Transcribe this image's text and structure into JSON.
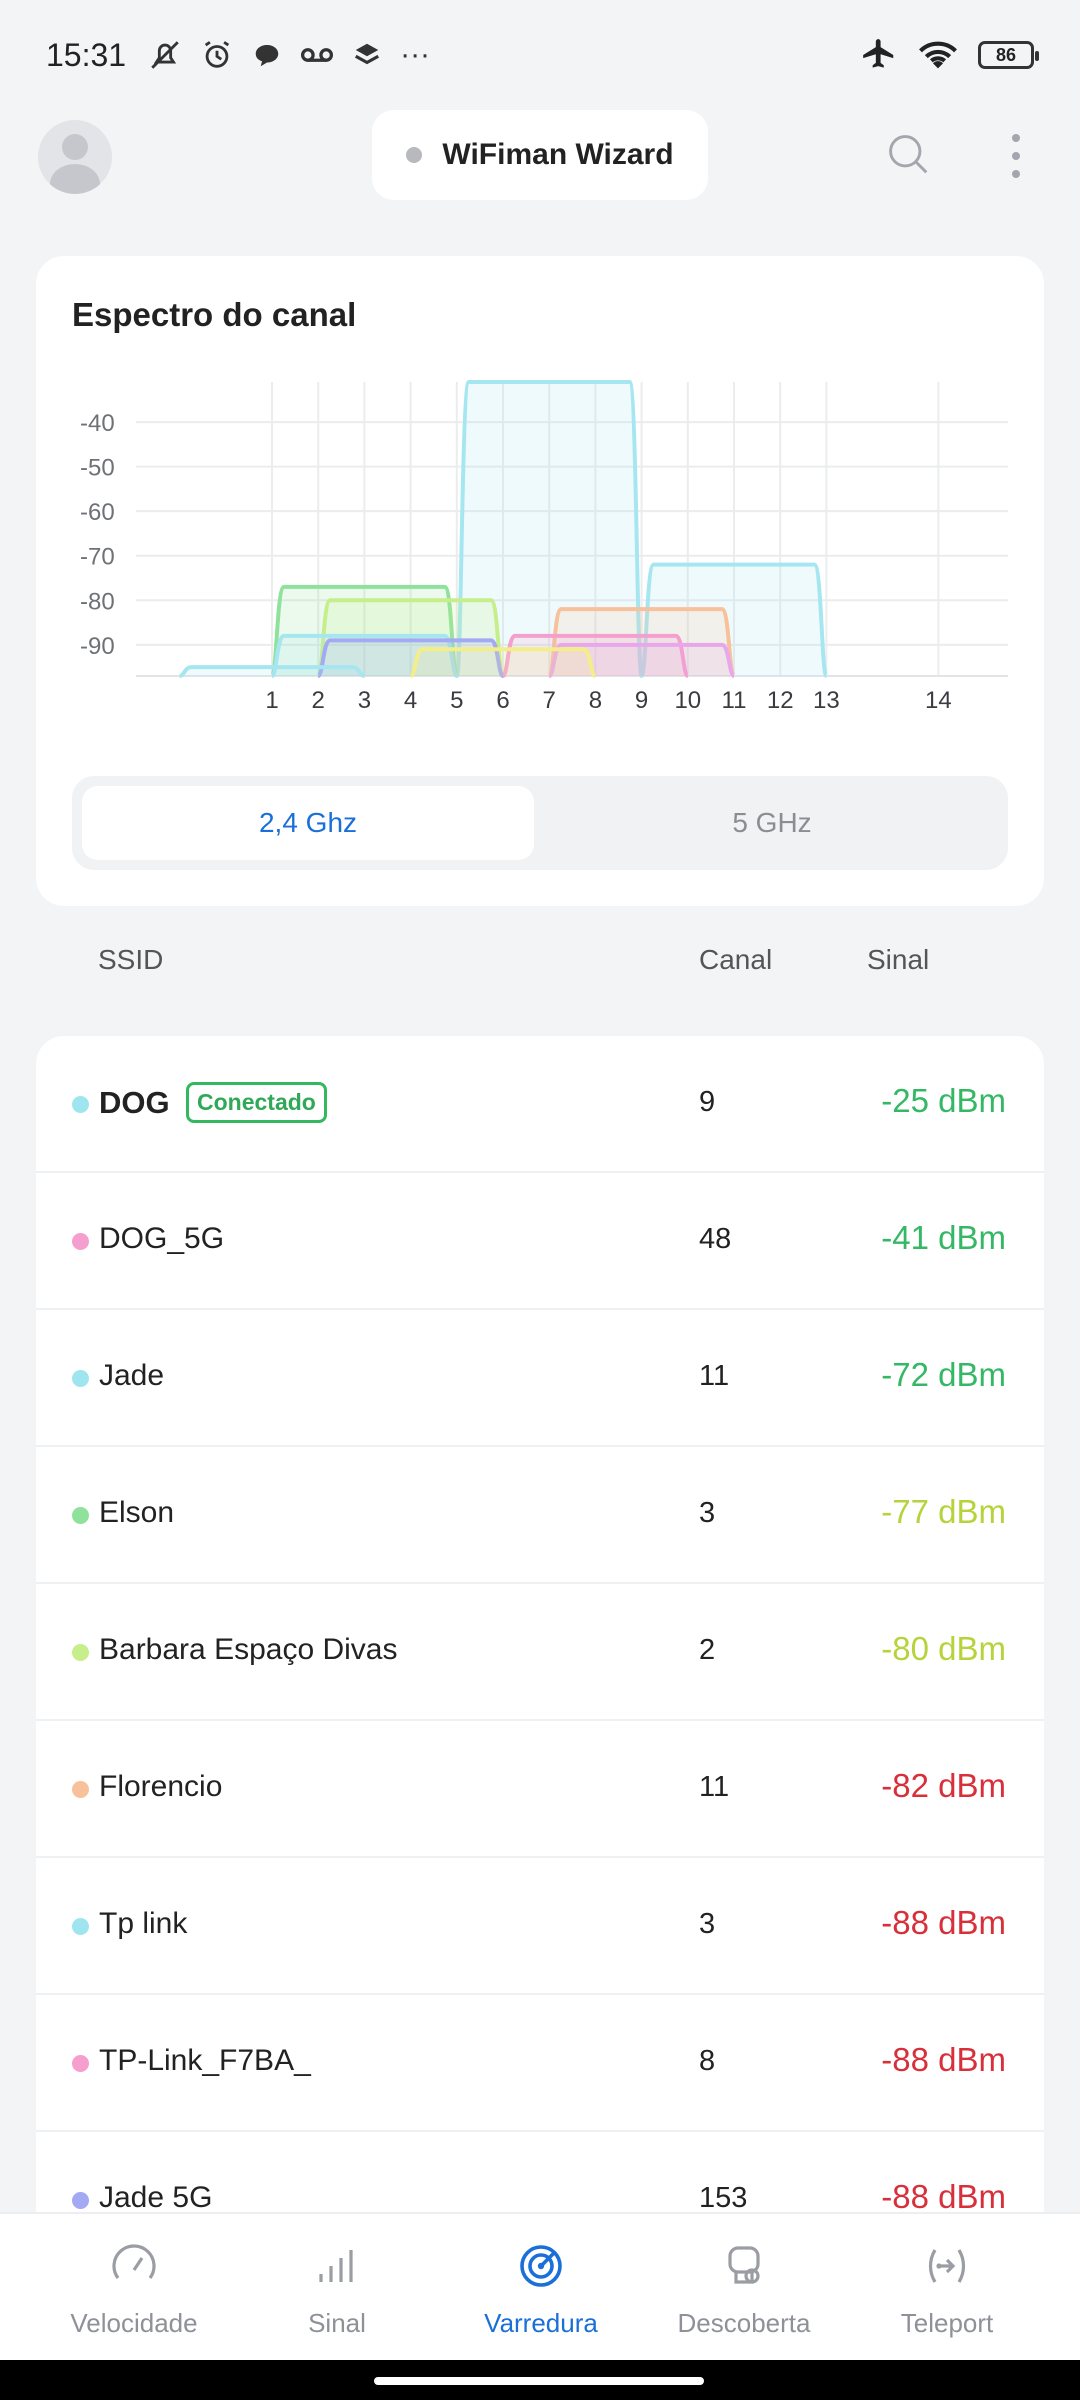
{
  "status_bar": {
    "time": "15:31",
    "battery": "86",
    "icons": [
      "bell-muted-icon",
      "alarm-icon",
      "chat-icon",
      "voicemail-icon",
      "stack-icon",
      "more-dots-icon"
    ],
    "right_icons": [
      "airplane-icon",
      "wifi-icon",
      "battery-icon"
    ]
  },
  "header": {
    "wizard_label": "WiFiman Wizard"
  },
  "spectrum": {
    "title": "Espectro do canal",
    "bands": {
      "active": "2,4 Ghz",
      "inactive": "5 GHz"
    }
  },
  "chart_data": {
    "type": "area",
    "title": "Espectro do canal",
    "x_ticks": [
      "1",
      "2",
      "3",
      "4",
      "5",
      "6",
      "7",
      "8",
      "9",
      "10",
      "11",
      "12",
      "13",
      "14"
    ],
    "y_ticks": [
      "-40",
      "-50",
      "-60",
      "-70",
      "-80",
      "-90"
    ],
    "xlim": [
      -1,
      15
    ],
    "ylim": [
      -97,
      -31
    ],
    "grid": true,
    "series": [
      {
        "channel_start": 5,
        "channel_end": 9,
        "peak_dbm": -31,
        "color": "#a6e6f0"
      },
      {
        "channel_start": 1,
        "channel_end": 5,
        "peak_dbm": -77,
        "color": "#8fe29b"
      },
      {
        "channel_start": 2,
        "channel_end": 6,
        "peak_dbm": -80,
        "color": "#c6ee8b"
      },
      {
        "channel_start": 9,
        "channel_end": 13,
        "peak_dbm": -72,
        "color": "#a6e6f0"
      },
      {
        "channel_start": 7,
        "channel_end": 11,
        "peak_dbm": -82,
        "color": "#f7c19b"
      },
      {
        "channel_start": 1,
        "channel_end": 5,
        "peak_dbm": -88,
        "color": "#a6e6f0"
      },
      {
        "channel_start": 6,
        "channel_end": 10,
        "peak_dbm": -88,
        "color": "#f59fcf"
      },
      {
        "channel_start": 2,
        "channel_end": 6,
        "peak_dbm": -89,
        "color": "#a3a9f2"
      },
      {
        "channel_start": 7,
        "channel_end": 11,
        "peak_dbm": -90,
        "color": "#e7a7ea"
      },
      {
        "channel_start": 4,
        "channel_end": 8,
        "peak_dbm": -91,
        "color": "#f3ee8a"
      },
      {
        "channel_start": -1,
        "channel_end": 3,
        "peak_dbm": -95,
        "color": "#a6e6f0"
      }
    ]
  },
  "table": {
    "col_ssid": "SSID",
    "col_channel": "Canal",
    "col_signal": "Sinal"
  },
  "networks": [
    {
      "ssid": "DOG",
      "badge": "Conectado",
      "channel": "9",
      "signal": "-25 dBm",
      "dot": "#9ee5f0",
      "signal_color": "#35b865"
    },
    {
      "ssid": "DOG_5G",
      "channel": "48",
      "signal": "-41 dBm",
      "dot": "#f59fcf",
      "signal_color": "#35b865"
    },
    {
      "ssid": "Jade",
      "channel": "11",
      "signal": "-72 dBm",
      "dot": "#9ee5f0",
      "signal_color": "#35b865"
    },
    {
      "ssid": "Elson",
      "channel": "3",
      "signal": "-77 dBm",
      "dot": "#8fe29b",
      "signal_color": "#b6d33c"
    },
    {
      "ssid": "Barbara Espaço Divas",
      "channel": "2",
      "signal": "-80 dBm",
      "dot": "#c6ee8b",
      "signal_color": "#b6d33c"
    },
    {
      "ssid": "Florencio",
      "channel": "11",
      "signal": "-82 dBm",
      "dot": "#f7c19b",
      "signal_color": "#d8303b"
    },
    {
      "ssid": "Tp link",
      "channel": "3",
      "signal": "-88 dBm",
      "dot": "#9ee5f0",
      "signal_color": "#d8303b"
    },
    {
      "ssid": "TP-Link_F7BA_",
      "channel": "8",
      "signal": "-88 dBm",
      "dot": "#f59fcf",
      "signal_color": "#d8303b"
    },
    {
      "ssid": "Jade 5G",
      "channel": "153",
      "signal": "-88 dBm",
      "dot": "#a3a9f2",
      "signal_color": "#d8303b"
    }
  ],
  "nav": [
    {
      "label": "Velocidade",
      "icon": "speedometer-icon"
    },
    {
      "label": "Sinal",
      "icon": "signal-bars-icon"
    },
    {
      "label": "Varredura",
      "icon": "radar-icon",
      "active": true
    },
    {
      "label": "Descoberta",
      "icon": "discovery-icon"
    },
    {
      "label": "Teleport",
      "icon": "teleport-icon"
    }
  ]
}
